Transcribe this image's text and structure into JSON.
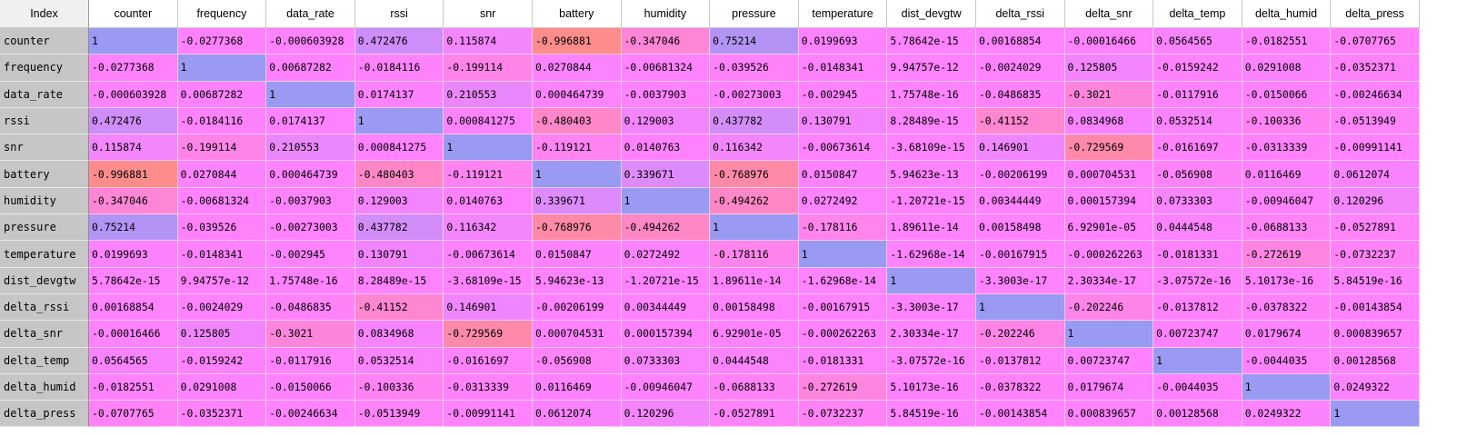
{
  "table": {
    "index_header": "Index",
    "columns": [
      "counter",
      "frequency",
      "data_rate",
      "rssi",
      "snr",
      "battery",
      "humidity",
      "pressure",
      "temperature",
      "dist_devgtw",
      "delta_rssi",
      "delta_snr",
      "delta_temp",
      "delta_humid",
      "delta_press"
    ],
    "rows": [
      {
        "label": "counter",
        "cells": [
          "1",
          "-0.0277368",
          "-0.000603928",
          "0.472476",
          "0.115874",
          "-0.996881",
          "-0.347046",
          "0.75214",
          "0.0199693",
          "5.78642e-15",
          "0.00168854",
          "-0.00016466",
          "0.0564565",
          "-0.0182551",
          "-0.0707765"
        ],
        "values": [
          1,
          -0.0277368,
          -0.000603928,
          0.472476,
          0.115874,
          -0.996881,
          -0.347046,
          0.75214,
          0.0199693,
          5.78642e-15,
          0.00168854,
          -0.00016466,
          0.0564565,
          -0.0182551,
          -0.0707765
        ]
      },
      {
        "label": "frequency",
        "cells": [
          "-0.0277368",
          "1",
          "0.00687282",
          "-0.0184116",
          "-0.199114",
          "0.0270844",
          "-0.00681324",
          "-0.039526",
          "-0.0148341",
          "9.94757e-12",
          "-0.0024029",
          "0.125805",
          "-0.0159242",
          "0.0291008",
          "-0.0352371"
        ],
        "values": [
          -0.0277368,
          1,
          0.00687282,
          -0.0184116,
          -0.199114,
          0.0270844,
          -0.00681324,
          -0.039526,
          -0.0148341,
          9.94757e-12,
          -0.0024029,
          0.125805,
          -0.0159242,
          0.0291008,
          -0.0352371
        ]
      },
      {
        "label": "data_rate",
        "cells": [
          "-0.000603928",
          "0.00687282",
          "1",
          "0.0174137",
          "0.210553",
          "0.000464739",
          "-0.0037903",
          "-0.00273003",
          "-0.002945",
          "1.75748e-16",
          "-0.0486835",
          "-0.3021",
          "-0.0117916",
          "-0.0150066",
          "-0.00246634"
        ],
        "values": [
          -0.000603928,
          0.00687282,
          1,
          0.0174137,
          0.210553,
          0.000464739,
          -0.0037903,
          -0.00273003,
          -0.002945,
          1.75748e-16,
          -0.0486835,
          -0.3021,
          -0.0117916,
          -0.0150066,
          -0.00246634
        ]
      },
      {
        "label": "rssi",
        "cells": [
          "0.472476",
          "-0.0184116",
          "0.0174137",
          "1",
          "0.000841275",
          "-0.480403",
          "0.129003",
          "0.437782",
          "0.130791",
          "8.28489e-15",
          "-0.41152",
          "0.0834968",
          "0.0532514",
          "-0.100336",
          "-0.0513949"
        ],
        "values": [
          0.472476,
          -0.0184116,
          0.0174137,
          1,
          0.000841275,
          -0.480403,
          0.129003,
          0.437782,
          0.130791,
          8.28489e-15,
          -0.41152,
          0.0834968,
          0.0532514,
          -0.100336,
          -0.0513949
        ]
      },
      {
        "label": "snr",
        "cells": [
          "0.115874",
          "-0.199114",
          "0.210553",
          "0.000841275",
          "1",
          "-0.119121",
          "0.0140763",
          "0.116342",
          "-0.00673614",
          "-3.68109e-15",
          "0.146901",
          "-0.729569",
          "-0.0161697",
          "-0.0313339",
          "-0.00991141"
        ],
        "values": [
          0.115874,
          -0.199114,
          0.210553,
          0.000841275,
          1,
          -0.119121,
          0.0140763,
          0.116342,
          -0.00673614,
          -3.68109e-15,
          0.146901,
          -0.729569,
          -0.0161697,
          -0.0313339,
          -0.00991141
        ]
      },
      {
        "label": "battery",
        "cells": [
          "-0.996881",
          "0.0270844",
          "0.000464739",
          "-0.480403",
          "-0.119121",
          "1",
          "0.339671",
          "-0.768976",
          "0.0150847",
          "5.94623e-13",
          "-0.00206199",
          "0.000704531",
          "-0.056908",
          "0.0116469",
          "0.0612074"
        ],
        "values": [
          -0.996881,
          0.0270844,
          0.000464739,
          -0.480403,
          -0.119121,
          1,
          0.339671,
          -0.768976,
          0.0150847,
          5.94623e-13,
          -0.00206199,
          0.000704531,
          -0.056908,
          0.0116469,
          0.0612074
        ]
      },
      {
        "label": "humidity",
        "cells": [
          "-0.347046",
          "-0.00681324",
          "-0.0037903",
          "0.129003",
          "0.0140763",
          "0.339671",
          "1",
          "-0.494262",
          "0.0272492",
          "-1.20721e-15",
          "0.00344449",
          "0.000157394",
          "0.0733303",
          "-0.00946047",
          "0.120296"
        ],
        "values": [
          -0.347046,
          -0.00681324,
          -0.0037903,
          0.129003,
          0.0140763,
          0.339671,
          1,
          -0.494262,
          0.0272492,
          -1.20721e-15,
          0.00344449,
          0.000157394,
          0.0733303,
          -0.00946047,
          0.120296
        ]
      },
      {
        "label": "pressure",
        "cells": [
          "0.75214",
          "-0.039526",
          "-0.00273003",
          "0.437782",
          "0.116342",
          "-0.768976",
          "-0.494262",
          "1",
          "-0.178116",
          "1.89611e-14",
          "0.00158498",
          "6.92901e-05",
          "0.0444548",
          "-0.0688133",
          "-0.0527891"
        ],
        "values": [
          0.75214,
          -0.039526,
          -0.00273003,
          0.437782,
          0.116342,
          -0.768976,
          -0.494262,
          1,
          -0.178116,
          1.89611e-14,
          0.00158498,
          6.92901e-05,
          0.0444548,
          -0.0688133,
          -0.0527891
        ]
      },
      {
        "label": "temperature",
        "cells": [
          "0.0199693",
          "-0.0148341",
          "-0.002945",
          "0.130791",
          "-0.00673614",
          "0.0150847",
          "0.0272492",
          "-0.178116",
          "1",
          "-1.62968e-14",
          "-0.00167915",
          "-0.000262263",
          "-0.0181331",
          "-0.272619",
          "-0.0732237"
        ],
        "values": [
          0.0199693,
          -0.0148341,
          -0.002945,
          0.130791,
          -0.00673614,
          0.0150847,
          0.0272492,
          -0.178116,
          1,
          -1.62968e-14,
          -0.00167915,
          -0.000262263,
          -0.0181331,
          -0.272619,
          -0.0732237
        ]
      },
      {
        "label": "dist_devgtw",
        "cells": [
          "5.78642e-15",
          "9.94757e-12",
          "1.75748e-16",
          "8.28489e-15",
          "-3.68109e-15",
          "5.94623e-13",
          "-1.20721e-15",
          "1.89611e-14",
          "-1.62968e-14",
          "1",
          "-3.3003e-17",
          "2.30334e-17",
          "-3.07572e-16",
          "5.10173e-16",
          "5.84519e-16"
        ],
        "values": [
          5.78642e-15,
          9.94757e-12,
          1.75748e-16,
          8.28489e-15,
          -3.68109e-15,
          5.94623e-13,
          -1.20721e-15,
          1.89611e-14,
          -1.62968e-14,
          1,
          -3.3003e-17,
          2.30334e-17,
          -3.07572e-16,
          5.10173e-16,
          5.84519e-16
        ]
      },
      {
        "label": "delta_rssi",
        "cells": [
          "0.00168854",
          "-0.0024029",
          "-0.0486835",
          "-0.41152",
          "0.146901",
          "-0.00206199",
          "0.00344449",
          "0.00158498",
          "-0.00167915",
          "-3.3003e-17",
          "1",
          "-0.202246",
          "-0.0137812",
          "-0.0378322",
          "-0.00143854"
        ],
        "values": [
          0.00168854,
          -0.0024029,
          -0.0486835,
          -0.41152,
          0.146901,
          -0.00206199,
          0.00344449,
          0.00158498,
          -0.00167915,
          -3.3003e-17,
          1,
          -0.202246,
          -0.0137812,
          -0.0378322,
          -0.00143854
        ]
      },
      {
        "label": "delta_snr",
        "cells": [
          "-0.00016466",
          "0.125805",
          "-0.3021",
          "0.0834968",
          "-0.729569",
          "0.000704531",
          "0.000157394",
          "6.92901e-05",
          "-0.000262263",
          "2.30334e-17",
          "-0.202246",
          "1",
          "0.00723747",
          "0.0179674",
          "0.000839657"
        ],
        "values": [
          -0.00016466,
          0.125805,
          -0.3021,
          0.0834968,
          -0.729569,
          0.000704531,
          0.000157394,
          6.92901e-05,
          -0.000262263,
          2.30334e-17,
          -0.202246,
          1,
          0.00723747,
          0.0179674,
          0.000839657
        ]
      },
      {
        "label": "delta_temp",
        "cells": [
          "0.0564565",
          "-0.0159242",
          "-0.0117916",
          "0.0532514",
          "-0.0161697",
          "-0.056908",
          "0.0733303",
          "0.0444548",
          "-0.0181331",
          "-3.07572e-16",
          "-0.0137812",
          "0.00723747",
          "1",
          "-0.0044035",
          "0.00128568"
        ],
        "values": [
          0.0564565,
          -0.0159242,
          -0.0117916,
          0.0532514,
          -0.0161697,
          -0.056908,
          0.0733303,
          0.0444548,
          -0.0181331,
          -3.07572e-16,
          -0.0137812,
          0.00723747,
          1,
          -0.0044035,
          0.00128568
        ]
      },
      {
        "label": "delta_humid",
        "cells": [
          "-0.0182551",
          "0.0291008",
          "-0.0150066",
          "-0.100336",
          "-0.0313339",
          "0.0116469",
          "-0.00946047",
          "-0.0688133",
          "-0.272619",
          "5.10173e-16",
          "-0.0378322",
          "0.0179674",
          "-0.0044035",
          "1",
          "0.0249322"
        ],
        "values": [
          -0.0182551,
          0.0291008,
          -0.0150066,
          -0.100336,
          -0.0313339,
          0.0116469,
          -0.00946047,
          -0.0688133,
          -0.272619,
          5.10173e-16,
          -0.0378322,
          0.0179674,
          -0.0044035,
          1,
          0.0249322
        ]
      },
      {
        "label": "delta_press",
        "cells": [
          "-0.0707765",
          "-0.0352371",
          "-0.00246634",
          "-0.0513949",
          "-0.00991141",
          "0.0612074",
          "0.120296",
          "-0.0527891",
          "-0.0732237",
          "5.84519e-16",
          "-0.00143854",
          "0.000839657",
          "0.00128568",
          "0.0249322",
          "1"
        ],
        "values": [
          -0.0707765,
          -0.0352371,
          -0.00246634,
          -0.0513949,
          -0.00991141,
          0.0612074,
          0.120296,
          -0.0527891,
          -0.0732237,
          5.84519e-16,
          -0.00143854,
          0.000839657,
          0.00128568,
          0.0249322,
          1
        ]
      }
    ]
  },
  "colors": {
    "high": "#9a9af2",
    "mid": "#ff82ff",
    "low": "#ff8c8c"
  }
}
